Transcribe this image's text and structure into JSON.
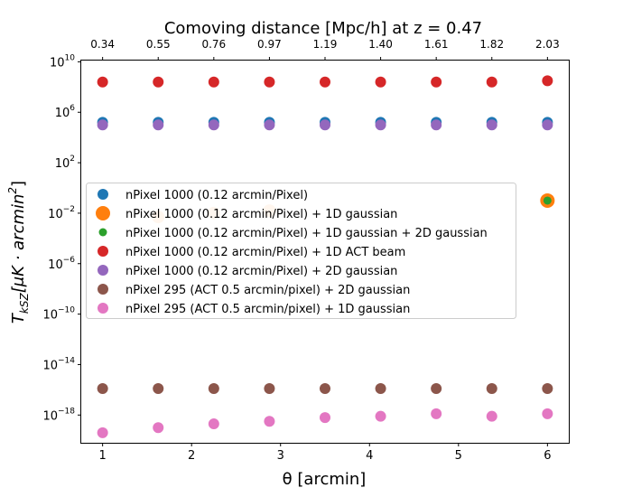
{
  "chart_data": {
    "type": "scatter",
    "title": "Comoving distance [Mpc/h] at z = 0.47",
    "xlabel": "θ [arcmin]",
    "ylabel_main": "T",
    "ylabel_sub": "kSZ",
    "ylabel_rest": "[μK · arcmin",
    "ylabel_sup": "2",
    "ylabel_close": "]",
    "xlim": [
      0.76,
      6.24
    ],
    "ylim_log10": [
      -20.2,
      10.1
    ],
    "yscale": "log",
    "x_ticks": [
      "1",
      "2",
      "3",
      "4",
      "5",
      "6"
    ],
    "y_ticks": [
      {
        "base": "10",
        "exp": "10",
        "log": 10
      },
      {
        "base": "10",
        "exp": "6",
        "log": 6
      },
      {
        "base": "10",
        "exp": "2",
        "log": 2
      },
      {
        "base": "10",
        "exp": "−2",
        "log": -2
      },
      {
        "base": "10",
        "exp": "−6",
        "log": -6
      },
      {
        "base": "10",
        "exp": "−10",
        "log": -10
      },
      {
        "base": "10",
        "exp": "−14",
        "log": -14
      },
      {
        "base": "10",
        "exp": "−18",
        "log": -18
      }
    ],
    "top_axis_ticks": [
      "0.34",
      "0.55",
      "0.76",
      "0.97",
      "1.19",
      "1.40",
      "1.61",
      "1.82",
      "2.03"
    ],
    "x": [
      1.0,
      1.625,
      2.25,
      2.875,
      3.5,
      4.125,
      4.75,
      5.375,
      6.0
    ],
    "series": [
      {
        "name": "nPixel 1000 (0.12 arcmin/Pixel)",
        "color": "#1f77b4",
        "size": "normal",
        "log10_values": [
          5.2,
          5.2,
          5.2,
          5.2,
          5.2,
          5.2,
          5.2,
          5.2,
          5.2
        ]
      },
      {
        "name": "nPixel 1000 (0.12 arcmin/Pixel) + 1D gaussian",
        "color": "#ff7f0e",
        "size": "large",
        "log10_values": [
          null,
          null,
          null,
          null,
          null,
          null,
          null,
          null,
          -1.0
        ]
      },
      {
        "name": "nPixel 1000 (0.12 arcmin/Pixel) + 1D gaussian + 2D gaussian",
        "color": "#2ca02c",
        "size": "small",
        "log10_values": [
          null,
          null,
          null,
          null,
          null,
          null,
          null,
          null,
          -1.0
        ]
      },
      {
        "name": "nPixel 1000 (0.12 arcmin/Pixel) + 1D ACT beam",
        "color": "#d62728",
        "size": "normal",
        "log10_values": [
          8.4,
          8.4,
          8.4,
          8.4,
          8.4,
          8.4,
          8.4,
          8.4,
          8.5
        ]
      },
      {
        "name": "nPixel 1000 (0.12 arcmin/Pixel) + 2D gaussian",
        "color": "#9467bd",
        "size": "normal",
        "log10_values": [
          5.0,
          5.0,
          5.0,
          5.0,
          5.0,
          5.0,
          5.0,
          5.0,
          5.0
        ]
      },
      {
        "name": "nPixel 295 (ACT 0.5 arcmin/pixel) + 2D gaussian",
        "color": "#8c564b",
        "size": "normal",
        "log10_values": [
          -15.9,
          -15.9,
          -15.9,
          -15.9,
          -15.9,
          -15.9,
          -15.9,
          -15.9,
          -15.9
        ]
      },
      {
        "name": "nPixel 295 (ACT 0.5 arcmin/pixel) + 1D gaussian",
        "color": "#e377c2",
        "size": "normal",
        "log10_values": [
          -19.4,
          -19.0,
          -18.7,
          -18.5,
          -18.2,
          -18.1,
          -17.9,
          -18.1,
          -17.9
        ]
      }
    ],
    "faint_background_points": {
      "note": "faint orange/green markers partly hidden behind legend",
      "x": [
        1.625,
        2.25,
        2.875
      ],
      "log10_values": [
        -2.3,
        -2.0,
        -1.8
      ]
    },
    "legend_position": "center-left",
    "grid": false
  }
}
